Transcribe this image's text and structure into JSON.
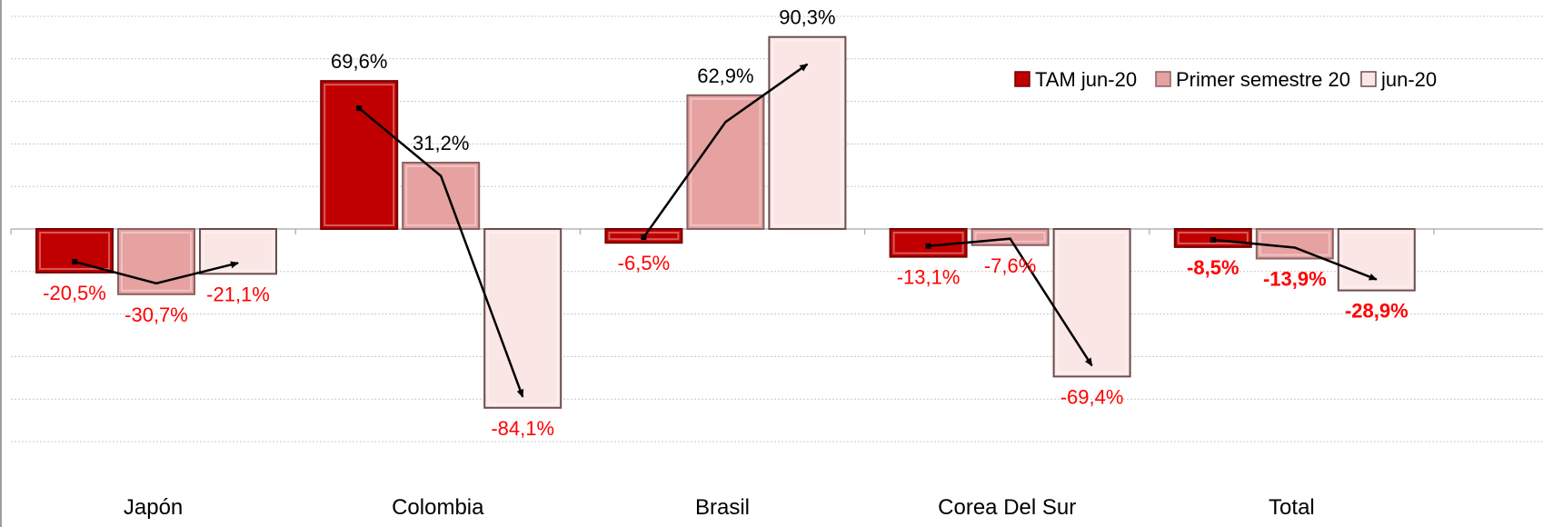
{
  "chart_data": {
    "type": "bar",
    "categories": [
      "Japón",
      "Colombia",
      "Brasil",
      "Corea Del Sur",
      "Total"
    ],
    "series": [
      {
        "name": "TAM jun-20",
        "values": [
          -20.5,
          69.6,
          -6.5,
          -13.1,
          -8.5
        ],
        "color": "#c00000"
      },
      {
        "name": "Primer semestre 20",
        "values": [
          -30.7,
          31.2,
          62.9,
          -7.6,
          -13.9
        ],
        "color": "#e6a1a1"
      },
      {
        "name": "jun-20",
        "values": [
          -21.1,
          -84.1,
          90.3,
          -69.4,
          -28.9
        ],
        "color": "#fbe6e6"
      }
    ],
    "data_labels": [
      [
        "-20,5%",
        "69,6%",
        "-6,5%",
        "-13,1%",
        "-8,5%"
      ],
      [
        "-30,7%",
        "31,2%",
        "62,9%",
        "-7,6%",
        "-13,9%"
      ],
      [
        "-21,1%",
        "-84,1%",
        "90,3%",
        "-69,4%",
        "-28,9%"
      ]
    ],
    "bold_categories": [
      "Total"
    ],
    "ylim": [
      -105,
      100
    ],
    "grid": true,
    "legend": "top-right",
    "trend_arrows": true,
    "colors": {
      "positive_label": "#000000",
      "negative_label": "#ff0000",
      "arrow": "#000000"
    },
    "title": "",
    "xlabel": "",
    "ylabel": ""
  }
}
